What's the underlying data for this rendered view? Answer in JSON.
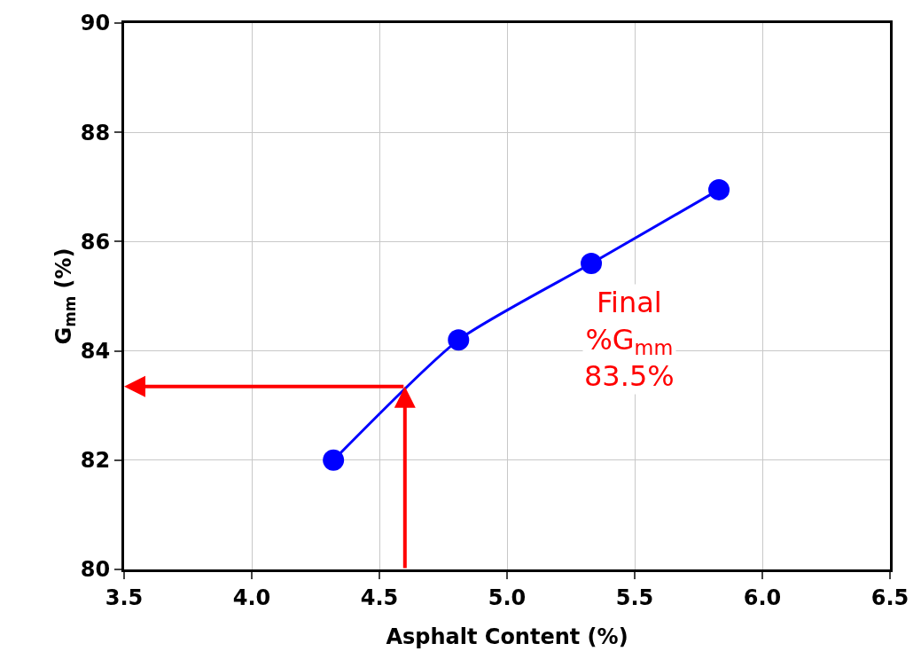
{
  "chart_data": {
    "type": "line",
    "xlabel": "Asphalt Content (%)",
    "ylabel": "G$_{mm}$ (%)",
    "x": [
      4.32,
      4.81,
      5.33,
      5.83
    ],
    "series": [
      {
        "color": "#0000ff",
        "values": [
          82.0,
          84.2,
          85.6,
          86.95
        ]
      }
    ],
    "xlim": [
      3.5,
      6.5
    ],
    "xticks": [
      {
        "value": 3.5,
        "label": "3.5"
      },
      {
        "value": 4,
        "label": "4.0"
      },
      {
        "value": 4.5,
        "label": "4.5"
      },
      {
        "value": 5,
        "label": "5.0"
      },
      {
        "value": 5.5,
        "label": "5.5"
      },
      {
        "value": 6,
        "label": "6.0"
      },
      {
        "value": 6.5,
        "label": "6.5"
      }
    ],
    "ylim": [
      80,
      90
    ],
    "yticks": [
      80,
      82,
      84,
      86,
      88,
      90
    ],
    "grid": true,
    "marker": "circle",
    "line_style": "solid",
    "ref_lines": [
      {
        "axis": "x",
        "value": 4.6,
        "color": "#ff0000"
      },
      {
        "axis": "y",
        "value": 83.35,
        "color": "#ff0000"
      }
    ],
    "annotations": [
      "Final\n%G$_{mm}$\n83.5%"
    ]
  }
}
